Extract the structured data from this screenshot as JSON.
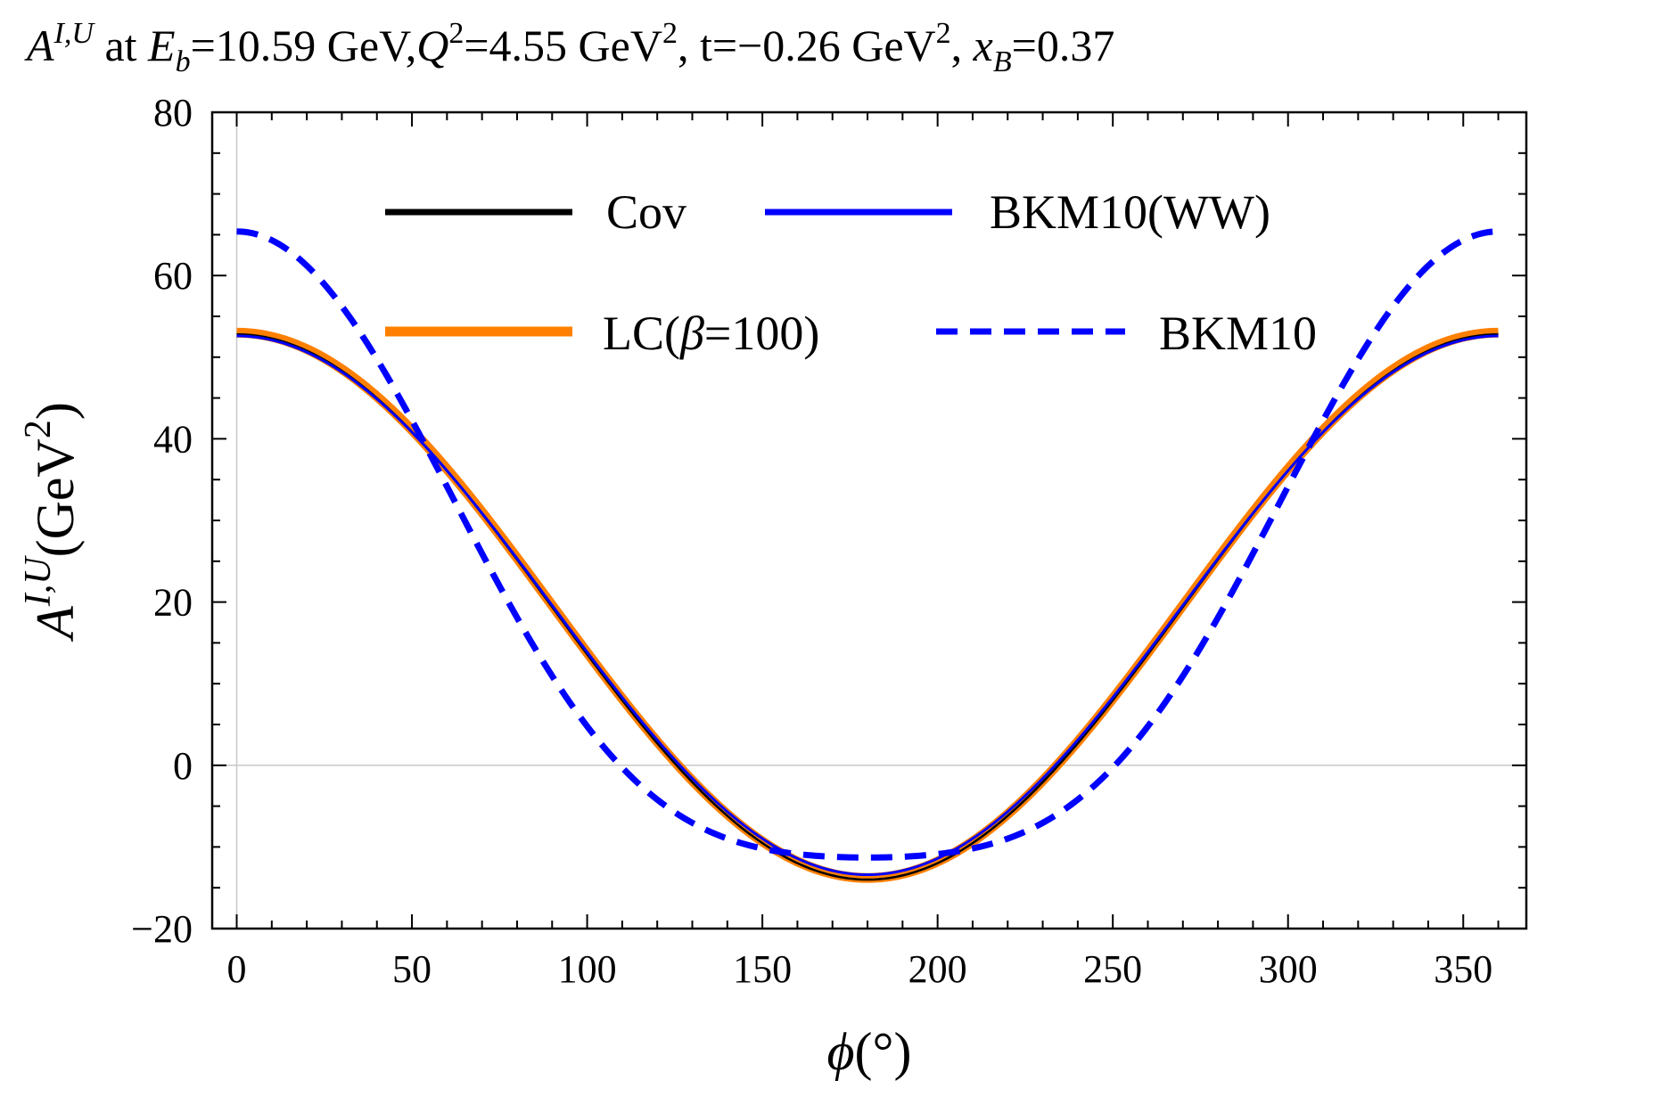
{
  "chart_data": {
    "type": "line",
    "title": {
      "A_sup": "I,U",
      "at": " at ",
      "Eb_sub": "b",
      "Eb_val": "=10.59 GeV,",
      "Q_sup": "2",
      "Q_val": "=4.55 GeV",
      "Q_unit_sup": "2",
      "t_val": ", t=−0.26 GeV",
      "t_unit_sup": "2",
      "x_sep": ", ",
      "xB_sub": "B",
      "xB_val": "=0.37"
    },
    "xlabel": {
      "symbol": "ϕ",
      "unit": "(°)"
    },
    "ylabel": {
      "symbol": "A",
      "sup": "I,U",
      "unit": "(GeV",
      "unit_sup": "2",
      "unit_close": ")"
    },
    "xlim": [
      -7,
      368
    ],
    "ylim": [
      -20,
      80
    ],
    "xticks": [
      0,
      50,
      100,
      150,
      200,
      250,
      300,
      350
    ],
    "yticks": [
      -20,
      0,
      20,
      40,
      60,
      80
    ],
    "xtick_labels": [
      "0",
      "50",
      "100",
      "150",
      "200",
      "250",
      "300",
      "350"
    ],
    "ytick_labels": [
      "−20",
      "0",
      "20",
      "40",
      "60",
      "80"
    ],
    "legend_position": "top-center",
    "series": [
      {
        "name": "Cov",
        "color": "#000000",
        "style": "solid",
        "model": "cosine",
        "params": {
          "c0": 19.4,
          "c1": 33.4,
          "c2": 0.0
        }
      },
      {
        "name": "BKM10(WW)",
        "color": "#0000ff",
        "style": "solid",
        "model": "cosine",
        "params": {
          "c0": 19.6,
          "c1": 33.0,
          "c2": 0.0
        }
      },
      {
        "name": "LC(β=100)",
        "color": "#ff8000",
        "style": "solid",
        "model": "cosine",
        "params": {
          "c0": 19.6,
          "c1": 33.4,
          "c2": 0.0
        }
      },
      {
        "name": "BKM10",
        "color": "#0000ff",
        "style": "dashed",
        "model": "cosine",
        "params": {
          "c0": 19.0,
          "c1": 38.35,
          "c2": 8.05
        }
      }
    ]
  }
}
